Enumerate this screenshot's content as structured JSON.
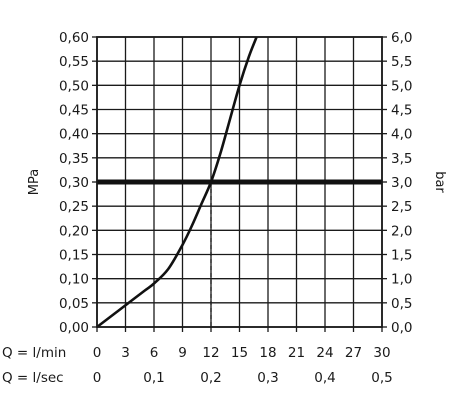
{
  "chart_data": {
    "type": "line",
    "title": "",
    "grid": true,
    "legend": "none",
    "xlim": [
      0,
      30
    ],
    "ylim": [
      0,
      0.6
    ],
    "x_ticks": [
      0,
      3,
      6,
      9,
      12,
      15,
      18,
      21,
      24,
      27,
      30
    ],
    "x_tick_labels": [
      "0",
      "3",
      "6",
      "9",
      "12",
      "15",
      "18",
      "21",
      "24",
      "27",
      "30"
    ],
    "x_row_label": "Q = l/min",
    "x2_ticks": [
      0,
      0.1,
      0.2,
      0.3,
      0.4,
      0.5
    ],
    "x2_tick_labels": [
      "0",
      "0,1",
      "0,2",
      "0,3",
      "0,4",
      "0,5"
    ],
    "x2_row_label": "Q = l/sec",
    "y_ticks": [
      0,
      0.05,
      0.1,
      0.15,
      0.2,
      0.25,
      0.3,
      0.35,
      0.4,
      0.45,
      0.5,
      0.55,
      0.6
    ],
    "y_tick_labels": [
      "0,00",
      "0,05",
      "0,10",
      "0,15",
      "0,20",
      "0,25",
      "0,30",
      "0,35",
      "0,40",
      "0,45",
      "0,50",
      "0,55",
      "0,60"
    ],
    "ylabel": "MPa",
    "y2_tick_labels": [
      "0,0",
      "0,5",
      "1,0",
      "1,5",
      "2,0",
      "2,5",
      "3,0",
      "3,5",
      "4,0",
      "4,5",
      "5,0",
      "5,5",
      "6,0"
    ],
    "y2label": "bar",
    "series": [
      {
        "x": [
          0,
          1,
          3,
          5,
          6,
          7.5,
          9,
          10,
          11,
          12,
          13,
          14,
          15,
          16,
          16.8
        ],
        "y": [
          0,
          0.015,
          0.045,
          0.075,
          0.09,
          0.12,
          0.17,
          0.21,
          0.255,
          0.3,
          0.36,
          0.43,
          0.5,
          0.56,
          0.6
        ]
      }
    ],
    "reference_line": {
      "y": 0.3
    },
    "reference_marker": {
      "x": 12
    }
  }
}
